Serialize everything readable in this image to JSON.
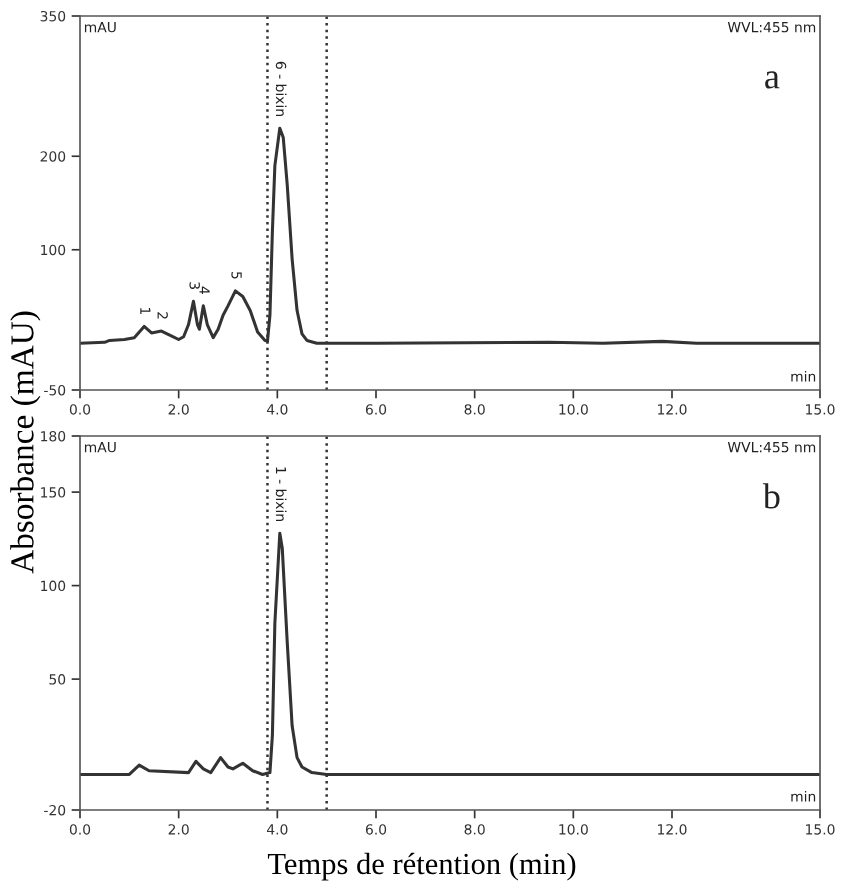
{
  "chart_data": [
    {
      "type": "line",
      "ylabel": "Absorbance (mAU)",
      "annotations": [
        "mAU",
        "WVL:455 nm",
        "min",
        "a",
        {
          "text": "1",
          "x": 1.3,
          "y": 18
        },
        {
          "text": "2",
          "x": 1.65,
          "y": 13
        },
        {
          "text": "3",
          "x": 2.3,
          "y": 45
        },
        {
          "text": "4",
          "x": 2.5,
          "y": 40
        },
        {
          "text": "5",
          "x": 3.15,
          "y": 56
        },
        {
          "text": "6 - bixin",
          "x": 4.05,
          "y": 230
        }
      ],
      "x": [
        0,
        0.5,
        0.6,
        0.9,
        1.1,
        1.3,
        1.45,
        1.65,
        1.85,
        2.0,
        2.1,
        2.2,
        2.3,
        2.38,
        2.42,
        2.5,
        2.58,
        2.7,
        2.8,
        2.9,
        3.0,
        3.15,
        3.3,
        3.45,
        3.6,
        3.75,
        3.8,
        3.85,
        3.9,
        3.95,
        4.05,
        4.12,
        4.2,
        4.3,
        4.4,
        4.5,
        4.6,
        4.8,
        6,
        9.5,
        10.6,
        11.8,
        12.5,
        15
      ],
      "series": [
        {
          "color": "#333333",
          "values": [
            0,
            1,
            3,
            4,
            6,
            18,
            11,
            13,
            8,
            4,
            7,
            20,
            45,
            20,
            15,
            40,
            20,
            6,
            15,
            30,
            40,
            56,
            50,
            35,
            12,
            3,
            2,
            30,
            120,
            190,
            230,
            220,
            170,
            90,
            35,
            10,
            3,
            0,
            0,
            1,
            0,
            2,
            0,
            0
          ]
        }
      ],
      "xlim": [
        0,
        15
      ],
      "xticks": [
        {
          "value": 0,
          "label": "0.0"
        },
        {
          "value": 2,
          "label": "2.0"
        },
        {
          "value": 4,
          "label": "4.0"
        },
        {
          "value": 6,
          "label": "6.0"
        },
        {
          "value": 8,
          "label": "8.0"
        },
        {
          "value": 10,
          "label": "10.0"
        },
        {
          "value": 12,
          "label": "12.0"
        },
        {
          "value": 15,
          "label": "15.0"
        }
      ],
      "ylim": [
        -50,
        350
      ],
      "yticks": [
        -50,
        100,
        200,
        350
      ],
      "ref_lines": [
        {
          "axis": "x",
          "value": 3.8,
          "color": "#333333",
          "line_style": "dotted"
        },
        {
          "axis": "x",
          "value": 5.0,
          "color": "#333333",
          "line_style": "dotted"
        }
      ],
      "grid": false,
      "legend": false,
      "marker": "none",
      "line_style": "solid"
    },
    {
      "type": "line",
      "xlabel": "Temps de rétention (min)",
      "annotations": [
        "mAU",
        "WVL:455 nm",
        "min",
        "b",
        {
          "text": "1 - bixin",
          "x": 4.05,
          "y": 128
        }
      ],
      "x": [
        0,
        1.0,
        1.2,
        1.4,
        2.2,
        2.35,
        2.5,
        2.65,
        2.85,
        3.0,
        3.1,
        3.3,
        3.5,
        3.7,
        3.85,
        3.9,
        3.95,
        4.05,
        4.1,
        4.2,
        4.3,
        4.4,
        4.5,
        4.7,
        5.0,
        15
      ],
      "series": [
        {
          "color": "#333333",
          "values": [
            -1,
            -1,
            4,
            1,
            0,
            6,
            2,
            0,
            8,
            3,
            2,
            5,
            1,
            -1,
            0,
            20,
            80,
            128,
            120,
            70,
            25,
            8,
            3,
            0,
            -1,
            -1
          ]
        }
      ],
      "xlim": [
        0,
        15
      ],
      "xticks": [
        {
          "value": 0,
          "label": "0.0"
        },
        {
          "value": 2,
          "label": "2.0"
        },
        {
          "value": 4,
          "label": "4.0"
        },
        {
          "value": 6,
          "label": "6.0"
        },
        {
          "value": 8,
          "label": "8.0"
        },
        {
          "value": 10,
          "label": "10.0"
        },
        {
          "value": 12,
          "label": "12.0"
        },
        {
          "value": 15,
          "label": "15.0"
        }
      ],
      "ylim": [
        -20,
        180
      ],
      "yticks": [
        -20,
        50,
        100,
        150,
        180
      ],
      "ref_lines": [
        {
          "axis": "x",
          "value": 3.8,
          "color": "#333333",
          "line_style": "dotted"
        },
        {
          "axis": "x",
          "value": 5.0,
          "color": "#333333",
          "line_style": "dotted"
        }
      ],
      "grid": false,
      "legend": false,
      "marker": "none",
      "line_style": "solid"
    }
  ]
}
